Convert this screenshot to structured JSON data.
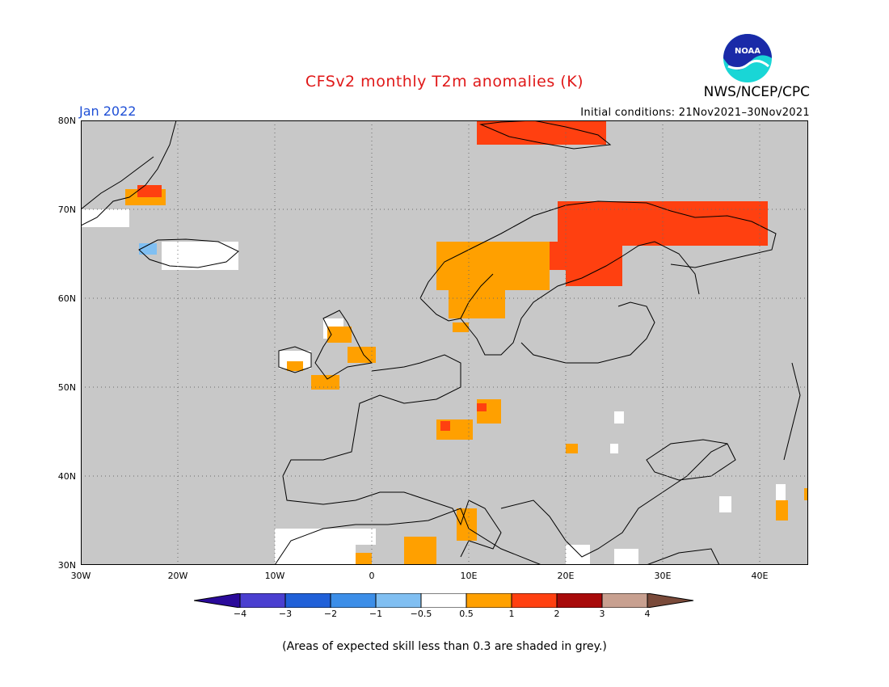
{
  "header": {
    "title": "CFSv2 monthly T2m anomalies (K)",
    "org": "NWS/NCEP/CPC",
    "month": "Jan 2022",
    "initial_conditions": "Initial conditions: 21Nov2021–30Nov2021",
    "logo_text": "NOAA"
  },
  "map": {
    "background_color": "#c8c8c8",
    "lat_labels": [
      "80N",
      "70N",
      "60N",
      "50N",
      "40N",
      "30N"
    ],
    "lon_labels": [
      "30W",
      "20W",
      "10W",
      "0",
      "10E",
      "20E",
      "30E",
      "40E"
    ]
  },
  "colorbar": {
    "labels": [
      "−4",
      "−3",
      "−2",
      "−1",
      "−0.5",
      "0.5",
      "1",
      "2",
      "3",
      "4"
    ],
    "colors": [
      "#2a0a9a",
      "#4a3fd0",
      "#2060d8",
      "#3c8ee8",
      "#80bff2",
      "#ffffff",
      "#ffa000",
      "#ff4010",
      "#a80a0a",
      "#c8a090",
      "#7a4a3a"
    ]
  },
  "footnote": "(Areas of expected skill less than 0.3 are shaded in grey.)",
  "anomaly_colors": {
    "white": "#ffffff",
    "orange": "#ffa000",
    "red": "#ff4010",
    "darkred": "#a80a0a",
    "lightblue": "#80bff2"
  }
}
